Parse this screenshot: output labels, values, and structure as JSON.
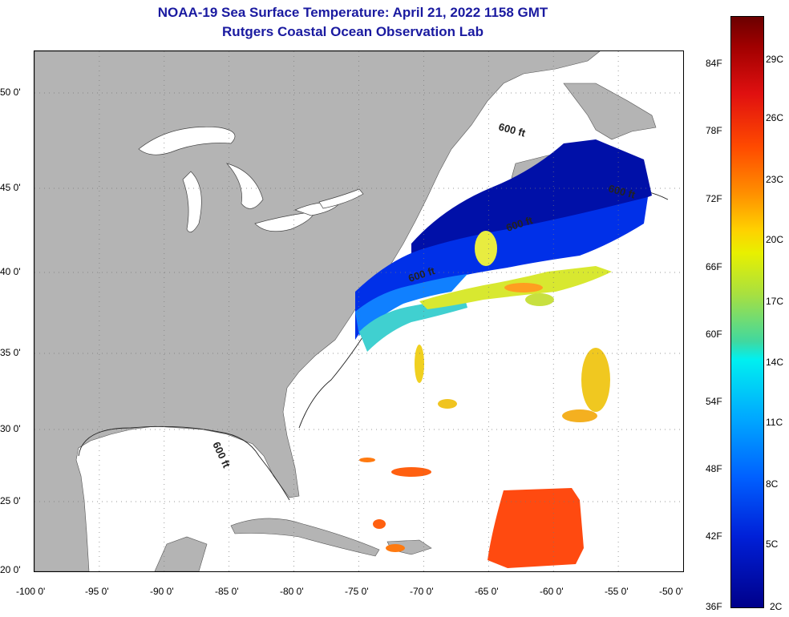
{
  "title": "NOAA-19 Sea Surface Temperature:  April 21, 2022 1158 GMT",
  "subtitle": "Rutgers Coastal Ocean Observation Lab",
  "map": {
    "contour_labels": [
      "600 ft",
      "600 ft",
      "600 ft",
      "600 ft",
      "600 ft"
    ],
    "lon_ticks": [
      "-100 0'",
      "-95 0'",
      "-90 0'",
      "-85 0'",
      "-80 0'",
      "-75 0'",
      "-70 0'",
      "-65 0'",
      "-60 0'",
      "-55 0'",
      "-50 0'"
    ],
    "lat_ticks": [
      "50 0'",
      "45 0'",
      "40 0'",
      "35 0'",
      "30 0'",
      "25 0'",
      "20 0'"
    ],
    "colors": {
      "land": "#b4b4b4",
      "ocean_no_data": "#ffffff",
      "title": "#1a1aa0"
    }
  },
  "colorbar": {
    "f_labels": [
      "84F",
      "78F",
      "72F",
      "66F",
      "60F",
      "54F",
      "48F",
      "42F",
      "36F"
    ],
    "c_labels": [
      "29C",
      "26C",
      "23C",
      "20C",
      "17C",
      "14C",
      "11C",
      "8C",
      "5C",
      "2C"
    ]
  }
}
